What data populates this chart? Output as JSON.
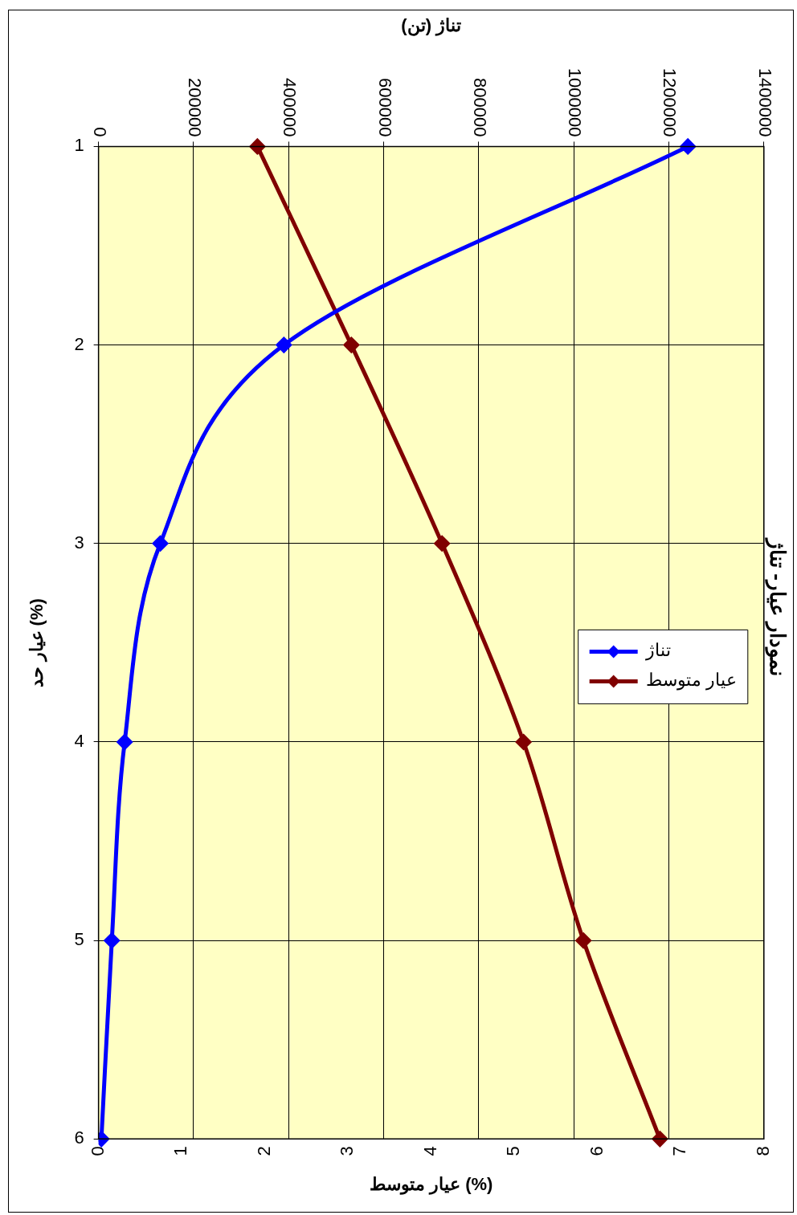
{
  "chart_data": {
    "type": "line",
    "orientation": "horizontal",
    "title": "نمودار عیار- تناژ",
    "ylabel": "عیار حد (%)",
    "x2label": "تناژ (تن)",
    "xlabel": "عیار متوسط (%)",
    "categories": [
      "1",
      "2",
      "3",
      "4",
      "5",
      "6"
    ],
    "x2lim": [
      0,
      1400000
    ],
    "x2ticks": [
      0,
      200000,
      400000,
      600000,
      800000,
      1000000,
      1200000,
      1400000
    ],
    "xlim": [
      0,
      8
    ],
    "xticks": [
      0,
      1,
      2,
      3,
      4,
      5,
      6,
      7,
      8
    ],
    "series": [
      {
        "name": "تناژ",
        "color": "#0000ff",
        "axis": "x2",
        "values": [
          1240000,
          390000,
          130000,
          55000,
          28000,
          6000
        ]
      },
      {
        "name": "عیار متوسط",
        "color": "#800000",
        "values": [
          1.91,
          3.04,
          4.13,
          5.11,
          5.83,
          6.75
        ]
      }
    ],
    "grid": true,
    "legend": "right",
    "marker": "diamond",
    "line_style": "solid"
  }
}
